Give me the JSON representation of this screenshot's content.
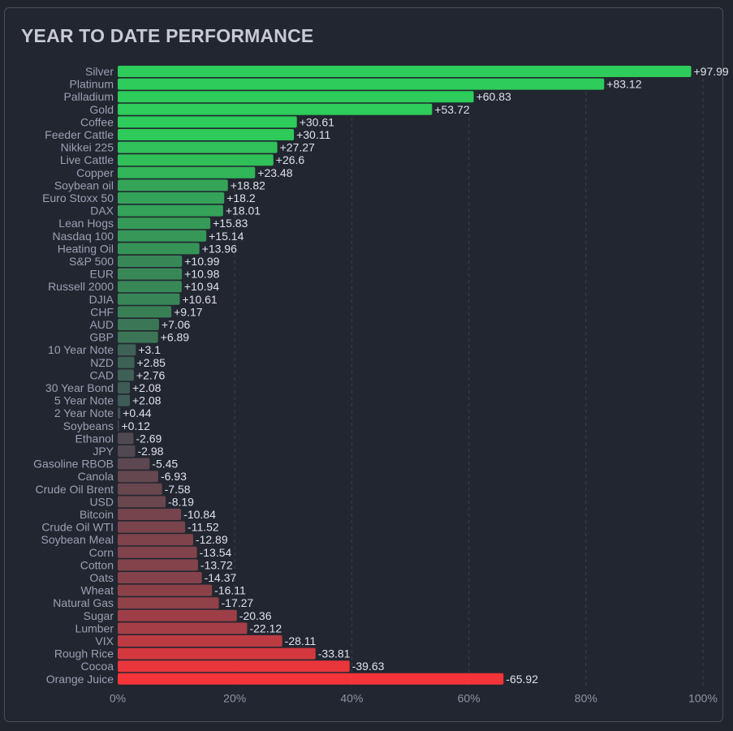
{
  "chart_data": {
    "type": "bar",
    "orientation": "horizontal",
    "title": "YEAR TO DATE PERFORMANCE",
    "xlabel": "",
    "ylabel": "",
    "value_basis": "absolute",
    "xlim": [
      0,
      100
    ],
    "x_ticks": [
      "0%",
      "20%",
      "40%",
      "60%",
      "80%",
      "100%"
    ],
    "x_tick_values": [
      0,
      20,
      40,
      60,
      80,
      100
    ],
    "grid": true,
    "colors": {
      "positive": "#2ecc5a",
      "negative": "#f5343a",
      "neutral": "#414b54"
    },
    "categories": [
      "Silver",
      "Platinum",
      "Palladium",
      "Gold",
      "Coffee",
      "Feeder Cattle",
      "Nikkei 225",
      "Live Cattle",
      "Copper",
      "Soybean oil",
      "Euro Stoxx 50",
      "DAX",
      "Lean Hogs",
      "Nasdaq 100",
      "Heating Oil",
      "S&P 500",
      "EUR",
      "Russell 2000",
      "DJIA",
      "CHF",
      "AUD",
      "GBP",
      "10 Year Note",
      "NZD",
      "CAD",
      "30 Year Bond",
      "5 Year Note",
      "2 Year Note",
      "Soybeans",
      "Ethanol",
      "JPY",
      "Gasoline RBOB",
      "Canola",
      "Crude Oil Brent",
      "USD",
      "Bitcoin",
      "Crude Oil WTI",
      "Soybean Meal",
      "Corn",
      "Cotton",
      "Oats",
      "Wheat",
      "Natural Gas",
      "Sugar",
      "Lumber",
      "VIX",
      "Rough Rice",
      "Cocoa",
      "Orange Juice"
    ],
    "values": [
      97.99,
      83.12,
      60.83,
      53.72,
      30.61,
      30.11,
      27.27,
      26.6,
      23.48,
      18.82,
      18.2,
      18.01,
      15.83,
      15.14,
      13.96,
      10.99,
      10.98,
      10.94,
      10.61,
      9.17,
      7.06,
      6.89,
      3.1,
      2.85,
      2.76,
      2.08,
      2.08,
      0.44,
      0.12,
      -2.69,
      -2.98,
      -5.45,
      -6.93,
      -7.58,
      -8.19,
      -10.84,
      -11.52,
      -12.89,
      -13.54,
      -13.72,
      -14.37,
      -16.11,
      -17.27,
      -20.36,
      -22.12,
      -28.11,
      -33.81,
      -39.63,
      -65.92
    ],
    "value_labels": [
      "+97.99",
      "+83.12",
      "+60.83",
      "+53.72",
      "+30.61",
      "+30.11",
      "+27.27",
      "+26.6",
      "+23.48",
      "+18.82",
      "+18.2",
      "+18.01",
      "+15.83",
      "+15.14",
      "+13.96",
      "+10.99",
      "+10.98",
      "+10.94",
      "+10.61",
      "+9.17",
      "+7.06",
      "+6.89",
      "+3.1",
      "+2.85",
      "+2.76",
      "+2.08",
      "+2.08",
      "+0.44",
      "+0.12",
      "-2.69",
      "-2.98",
      "-5.45",
      "-6.93",
      "-7.58",
      "-8.19",
      "-10.84",
      "-11.52",
      "-12.89",
      "-13.54",
      "-13.72",
      "-14.37",
      "-16.11",
      "-17.27",
      "-20.36",
      "-22.12",
      "-28.11",
      "-33.81",
      "-39.63",
      "-65.92"
    ]
  }
}
